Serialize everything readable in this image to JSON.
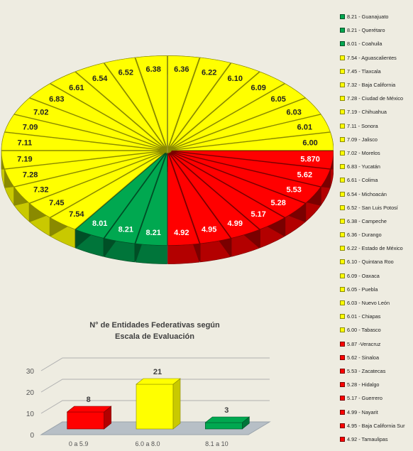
{
  "colors": {
    "green": "#00a850",
    "yellow": "#ffff00",
    "red": "#ff0000"
  },
  "chart_data": [
    {
      "type": "pie",
      "slices": [
        {
          "label": "Guanajuato",
          "value": 8.21,
          "display": "8.21",
          "color": "green"
        },
        {
          "label": "Querétaro",
          "value": 8.21,
          "display": "8.21",
          "color": "green"
        },
        {
          "label": "Coahuila",
          "value": 8.01,
          "display": "8.01",
          "color": "green"
        },
        {
          "label": "Aguascalientes",
          "value": 7.54,
          "display": "7.54",
          "color": "yellow"
        },
        {
          "label": "Tlaxcala",
          "value": 7.45,
          "display": "7.45",
          "color": "yellow"
        },
        {
          "label": "Baja California",
          "value": 7.32,
          "display": "7.32",
          "color": "yellow"
        },
        {
          "label": "Ciudad de México",
          "value": 7.28,
          "display": "7.28",
          "color": "yellow"
        },
        {
          "label": "Chihuahua",
          "value": 7.19,
          "display": "7.19",
          "color": "yellow"
        },
        {
          "label": "Sonora",
          "value": 7.11,
          "display": "7.11",
          "color": "yellow"
        },
        {
          "label": "Jalisco",
          "value": 7.09,
          "display": "7.09",
          "color": "yellow"
        },
        {
          "label": "Morelos",
          "value": 7.02,
          "display": "7.02",
          "color": "yellow"
        },
        {
          "label": "Yucatán",
          "value": 6.83,
          "display": "6.83",
          "color": "yellow"
        },
        {
          "label": "Colima",
          "value": 6.61,
          "display": "6.61",
          "color": "yellow"
        },
        {
          "label": "Michoacán",
          "value": 6.54,
          "display": "6.54",
          "color": "yellow"
        },
        {
          "label": "San Luis Potosí",
          "value": 6.52,
          "display": "6.52",
          "color": "yellow"
        },
        {
          "label": "Campeche",
          "value": 6.38,
          "display": "6.38",
          "color": "yellow"
        },
        {
          "label": "Durango",
          "value": 6.36,
          "display": "6.36",
          "color": "yellow"
        },
        {
          "label": "Estado de México",
          "value": 6.22,
          "display": "6.22",
          "color": "yellow"
        },
        {
          "label": "Quintana Roo",
          "value": 6.1,
          "display": "6.10",
          "color": "yellow"
        },
        {
          "label": "Oaxaca",
          "value": 6.09,
          "display": "6.09",
          "color": "yellow"
        },
        {
          "label": "Puebla",
          "value": 6.05,
          "display": "6.05",
          "color": "yellow"
        },
        {
          "label": "Nuevo León",
          "value": 6.03,
          "display": "6.03",
          "color": "yellow"
        },
        {
          "label": "Chiapas",
          "value": 6.01,
          "display": "6.01",
          "color": "yellow"
        },
        {
          "label": "Tabasco",
          "value": 6.0,
          "display": "6.00",
          "color": "yellow"
        },
        {
          "label": "Veracruz",
          "value": 5.87,
          "display": "5.870",
          "color": "red"
        },
        {
          "label": "Sinaloa",
          "value": 5.62,
          "display": "5.62",
          "color": "red"
        },
        {
          "label": "Zacatecas",
          "value": 5.53,
          "display": "5.53",
          "color": "red"
        },
        {
          "label": "Hidalgo",
          "value": 5.28,
          "display": "5.28",
          "color": "red"
        },
        {
          "label": "Guerrero",
          "value": 5.17,
          "display": "5.17",
          "color": "red"
        },
        {
          "label": "Nayarit",
          "value": 4.99,
          "display": "4.99",
          "color": "red"
        },
        {
          "label": "Baja California Sur",
          "value": 4.95,
          "display": "4.95",
          "color": "red"
        },
        {
          "label": "Tamaulipas",
          "value": 4.92,
          "display": "4.92",
          "color": "red"
        }
      ],
      "legend": [
        {
          "text": "8.21 - Guanajuato",
          "color": "green"
        },
        {
          "text": "8.21 - Querétaro",
          "color": "green"
        },
        {
          "text": "8.01 - Coahuila",
          "color": "green"
        },
        {
          "text": "7.54 - Aguascalientes",
          "color": "yellow"
        },
        {
          "text": "7.45 - Tlaxcala",
          "color": "yellow"
        },
        {
          "text": "7.32 - Baja California",
          "color": "yellow"
        },
        {
          "text": "7.28 - Ciudad de México",
          "color": "yellow"
        },
        {
          "text": "7.19 - Chihuahua",
          "color": "yellow"
        },
        {
          "text": "7.11 - Sonora",
          "color": "yellow"
        },
        {
          "text": "7.09 - Jalisco",
          "color": "yellow"
        },
        {
          "text": "7.02 - Morelos",
          "color": "yellow"
        },
        {
          "text": "6.83 - Yucatán",
          "color": "yellow"
        },
        {
          "text": "6.61 - Colima",
          "color": "yellow"
        },
        {
          "text": "6.54 - Michoacán",
          "color": "yellow"
        },
        {
          "text": "6.52 - San Luis Potosí",
          "color": "yellow"
        },
        {
          "text": "6.38 - Campeche",
          "color": "yellow"
        },
        {
          "text": "6.36 - Durango",
          "color": "yellow"
        },
        {
          "text": "6.22 - Estado de México",
          "color": "yellow"
        },
        {
          "text": "6.10 - Quintana Roo",
          "color": "yellow"
        },
        {
          "text": "6.09 - Oaxaca",
          "color": "yellow"
        },
        {
          "text": "6.05 - Puebla",
          "color": "yellow"
        },
        {
          "text": "6.03 - Nuevo León",
          "color": "yellow"
        },
        {
          "text": "6.01 - Chiapas",
          "color": "yellow"
        },
        {
          "text": "6.00 - Tabasco",
          "color": "yellow"
        },
        {
          "text": "5.87 -Veracruz",
          "color": "red"
        },
        {
          "text": "5.62 - Sinaloa",
          "color": "red"
        },
        {
          "text": "5.53 - Zacatecas",
          "color": "red"
        },
        {
          "text": "5.28 - Hidalgo",
          "color": "red"
        },
        {
          "text": "5.17 - Guerrero",
          "color": "red"
        },
        {
          "text": "4.99 - Nayarit",
          "color": "red"
        },
        {
          "text": "4.95 - Baja California Sur",
          "color": "red"
        },
        {
          "text": "4.92 - Tamaulipas",
          "color": "red"
        }
      ]
    },
    {
      "type": "bar",
      "title_line1": "N° de Entidades Federativas según",
      "title_line2": "Escala de Evaluación",
      "categories": [
        "0 a 5.9",
        "6.0 a 8.0",
        "8.1 a 10"
      ],
      "values": [
        8,
        21,
        3
      ],
      "colors": [
        "red",
        "yellow",
        "green"
      ],
      "y_ticks": [
        "0",
        "10",
        "20",
        "30"
      ],
      "ylim": [
        0,
        30
      ],
      "grid": true
    }
  ]
}
